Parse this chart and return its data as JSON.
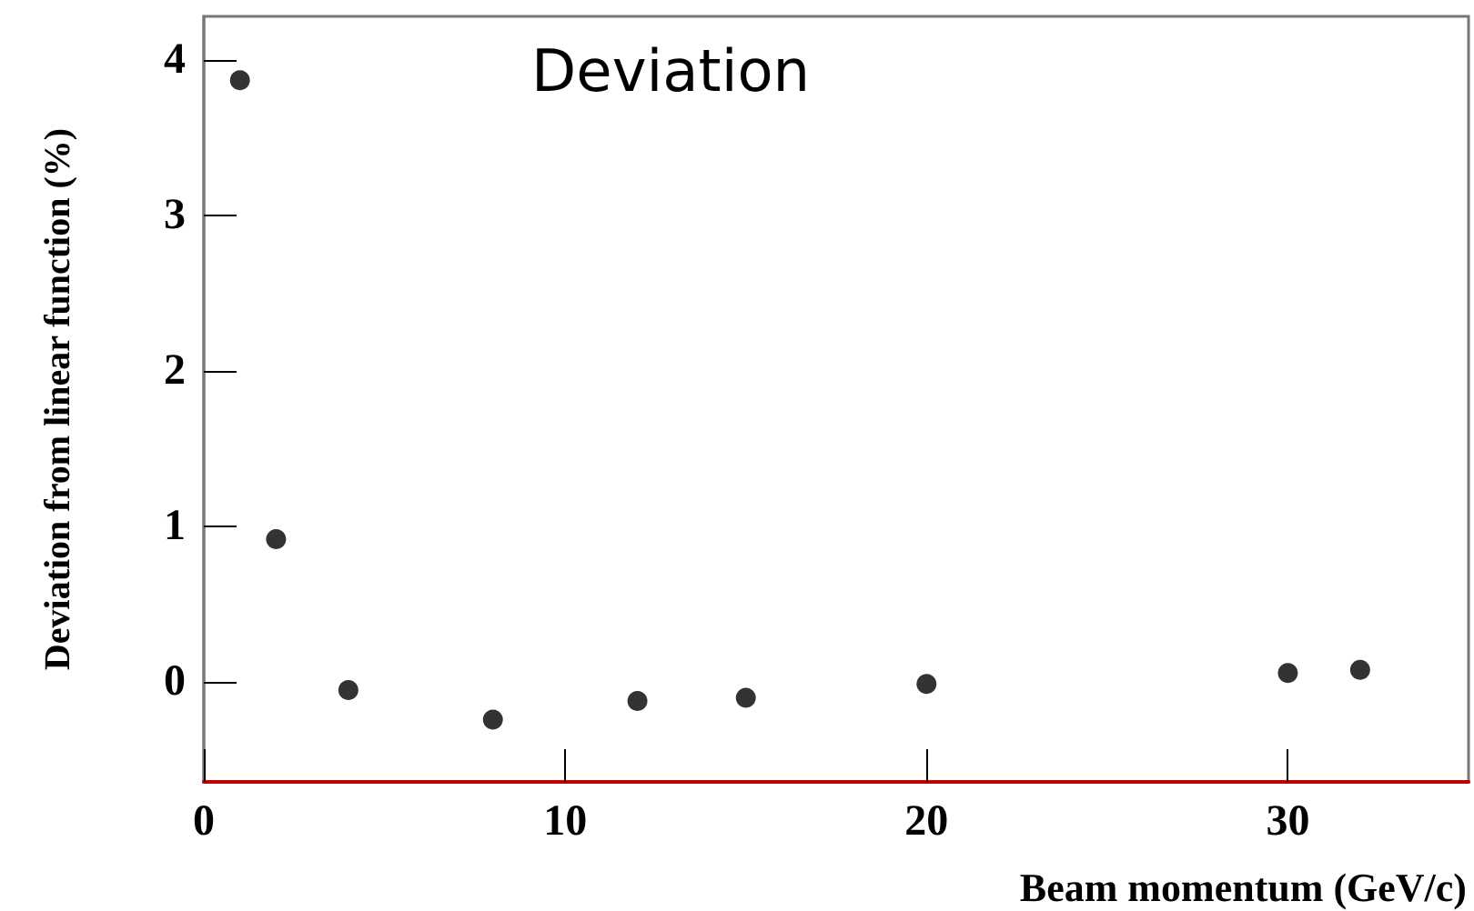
{
  "chart_data": {
    "type": "scatter",
    "title": "Deviation",
    "xlabel": "Beam momentum (GeV/c)",
    "ylabel": "Deviation from linear function (%)",
    "x": [
      1,
      2,
      4,
      8,
      12,
      15,
      20,
      30,
      32
    ],
    "values": [
      3.87,
      0.92,
      -0.05,
      -0.24,
      -0.12,
      -0.1,
      -0.01,
      0.06,
      0.08
    ],
    "color": "#000000",
    "marker": "circle",
    "xlim": [
      0,
      35
    ],
    "xticks": [
      0,
      10,
      20,
      30
    ],
    "ylim": [
      -0.64,
      4.28
    ],
    "yticks": [
      0,
      1,
      2,
      3,
      4
    ],
    "grid": false
  }
}
